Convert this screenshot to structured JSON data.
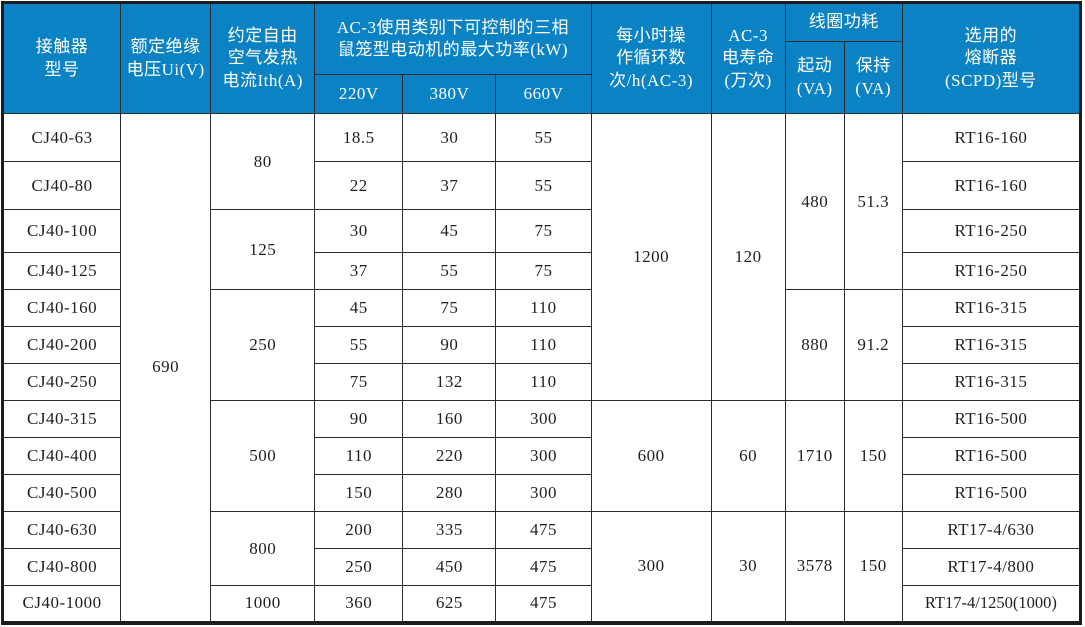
{
  "colors": {
    "header_bg": "#0a82c3",
    "header_text": "#ffffff",
    "grid_line": "#2b2b2b",
    "body_text": "#1f1f1f",
    "outer_border": "#1c1c1c"
  },
  "table": {
    "header": {
      "contactor_model": "接触器\n型号",
      "rated_insulation_voltage": "额定绝缘\n电压Ui(V)",
      "conventional_thermal_current": "约定自由\n空气发热\n电流Ith(A)",
      "ac3_max_power_group": "AC-3使用类别下可控制的三相\n鼠笼型电动机的最大功率(kW)",
      "voltage_220": "220V",
      "voltage_380": "380V",
      "voltage_660": "660V",
      "operating_cycles": "每小时操\n作循环数\n次/h(AC-3)",
      "ac3_electrical_life": "AC-3\n电寿命\n(万次)",
      "coil_power_group": "线圈功耗",
      "coil_pickup": "起动\n(VA)",
      "coil_holding": "保持\n(VA)",
      "fuse": "选用的\n熔断器\n(SCPD)型号"
    },
    "rows": [
      {
        "tall": "xl",
        "cells": [
          {
            "t": "CJ40-63"
          },
          {
            "t": "690",
            "rs": 13
          },
          {
            "t": "80",
            "rs": 2
          },
          {
            "t": "18.5"
          },
          {
            "t": "30"
          },
          {
            "t": "55"
          },
          {
            "t": "1200",
            "rs": 7,
            "sep": true
          },
          {
            "t": "120",
            "rs": 7,
            "sep": true
          },
          {
            "t": "480",
            "rs": 4,
            "sep": true
          },
          {
            "t": "51.3",
            "rs": 4,
            "sep": true
          },
          {
            "t": "RT16-160"
          }
        ]
      },
      {
        "tall": "xl",
        "cells": [
          {
            "t": "CJ40-80"
          },
          {
            "t": "22"
          },
          {
            "t": "37"
          },
          {
            "t": "55"
          },
          {
            "t": "RT16-160"
          }
        ]
      },
      {
        "tall": "lg",
        "cells": [
          {
            "t": "CJ40-100"
          },
          {
            "t": "125",
            "rs": 2,
            "sep": true
          },
          {
            "t": "30"
          },
          {
            "t": "45"
          },
          {
            "t": "75"
          },
          {
            "t": "RT16-250"
          }
        ]
      },
      {
        "cells": [
          {
            "t": "CJ40-125",
            "sep": true
          },
          {
            "t": "37",
            "sep": true
          },
          {
            "t": "55",
            "sep": true
          },
          {
            "t": "75",
            "sep": true
          },
          {
            "t": "RT16-250",
            "sep": true
          }
        ]
      },
      {
        "cells": [
          {
            "t": "CJ40-160"
          },
          {
            "t": "250",
            "rs": 3,
            "sep": true
          },
          {
            "t": "45"
          },
          {
            "t": "75"
          },
          {
            "t": "110"
          },
          {
            "t": "880",
            "rs": 3,
            "sep": true
          },
          {
            "t": "91.2",
            "rs": 3,
            "sep": true
          },
          {
            "t": "RT16-315"
          }
        ]
      },
      {
        "cells": [
          {
            "t": "CJ40-200"
          },
          {
            "t": "55"
          },
          {
            "t": "90"
          },
          {
            "t": "110"
          },
          {
            "t": "RT16-315"
          }
        ]
      },
      {
        "cells": [
          {
            "t": "CJ40-250",
            "sep": true
          },
          {
            "t": "75",
            "sep": true
          },
          {
            "t": "132",
            "sep": true
          },
          {
            "t": "110",
            "sep": true
          },
          {
            "t": "RT16-315",
            "sep": true
          }
        ]
      },
      {
        "cells": [
          {
            "t": "CJ40-315"
          },
          {
            "t": "500",
            "rs": 3,
            "sep": true
          },
          {
            "t": "90"
          },
          {
            "t": "160"
          },
          {
            "t": "300"
          },
          {
            "t": "600",
            "rs": 3,
            "sep": true
          },
          {
            "t": "60",
            "rs": 3,
            "sep": true
          },
          {
            "t": "1710",
            "rs": 3,
            "sep": true
          },
          {
            "t": "150",
            "rs": 3,
            "sep": true
          },
          {
            "t": "RT16-500"
          }
        ]
      },
      {
        "cells": [
          {
            "t": "CJ40-400"
          },
          {
            "t": "110"
          },
          {
            "t": "220"
          },
          {
            "t": "300"
          },
          {
            "t": "RT16-500"
          }
        ]
      },
      {
        "cells": [
          {
            "t": "CJ40-500",
            "sep": true
          },
          {
            "t": "150",
            "sep": true
          },
          {
            "t": "280",
            "sep": true
          },
          {
            "t": "300",
            "sep": true
          },
          {
            "t": "RT16-500",
            "sep": true
          }
        ]
      },
      {
        "cells": [
          {
            "t": "CJ40-630"
          },
          {
            "t": "800",
            "rs": 2
          },
          {
            "t": "200"
          },
          {
            "t": "335"
          },
          {
            "t": "475"
          },
          {
            "t": "300",
            "rs": 3
          },
          {
            "t": "30",
            "rs": 3
          },
          {
            "t": "3578",
            "rs": 3
          },
          {
            "t": "150",
            "rs": 3
          },
          {
            "t": "RT17-4/630"
          }
        ]
      },
      {
        "cells": [
          {
            "t": "CJ40-800"
          },
          {
            "t": "250"
          },
          {
            "t": "450"
          },
          {
            "t": "475"
          },
          {
            "t": "RT17-4/800"
          }
        ]
      },
      {
        "cells": [
          {
            "t": "CJ40-1000"
          },
          {
            "t": "1000"
          },
          {
            "t": "360"
          },
          {
            "t": "625"
          },
          {
            "t": "475"
          },
          {
            "t": "RT17-4/1250(1000)",
            "tight": true
          }
        ]
      }
    ]
  }
}
